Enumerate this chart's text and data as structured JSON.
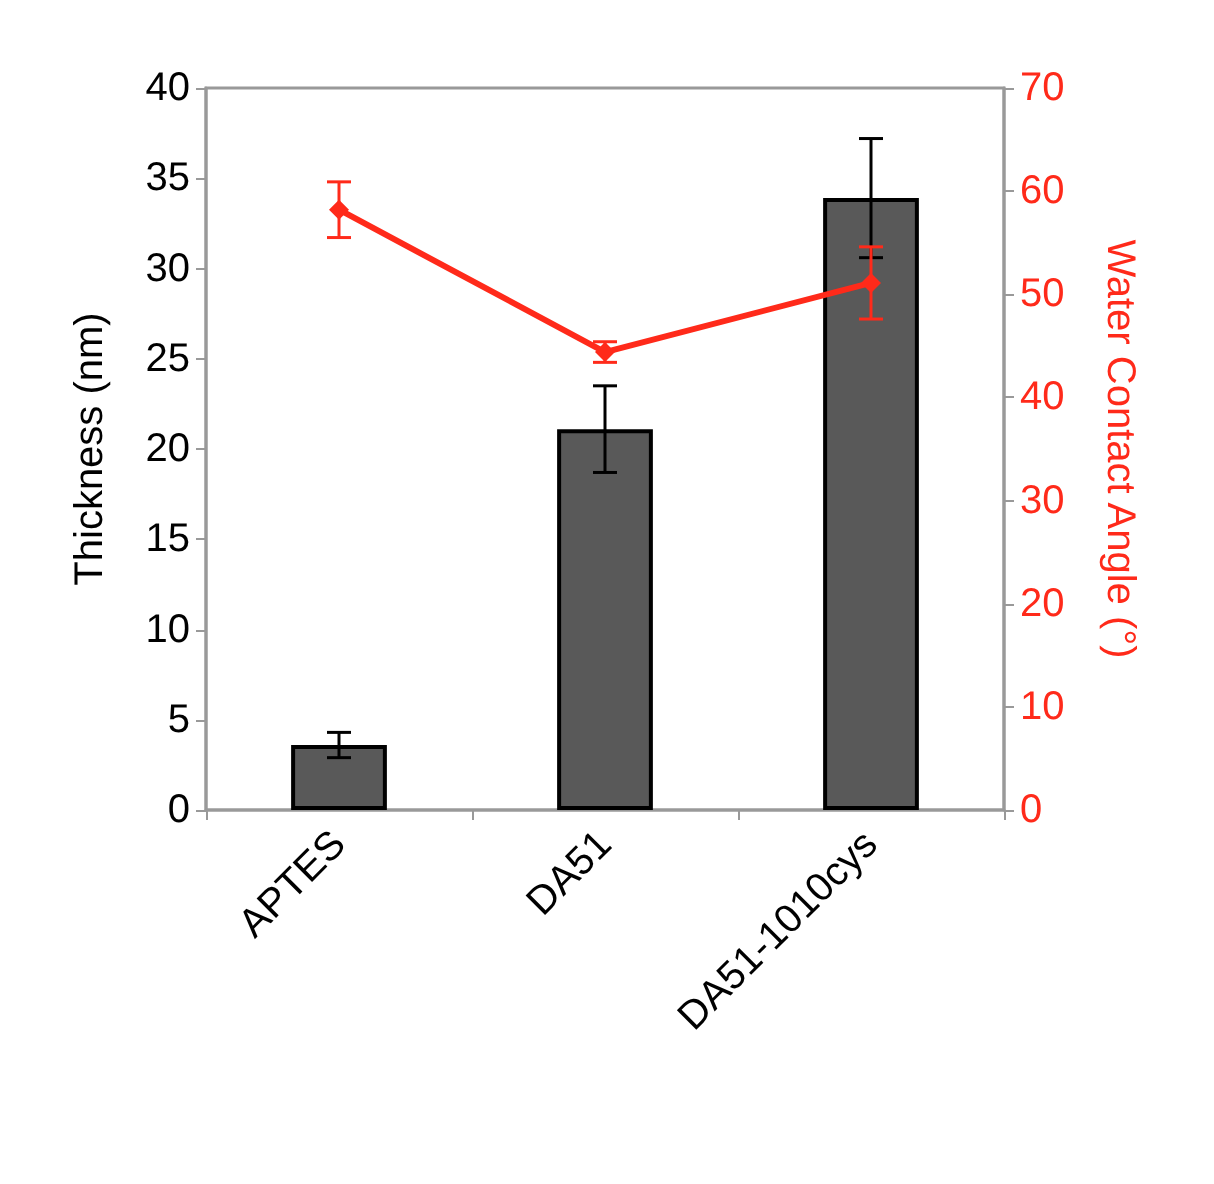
{
  "chart_data": {
    "type": "bar",
    "categories": [
      "APTES",
      "DA51",
      "DA51-1010cys"
    ],
    "ylabel": "Thickness (nm)",
    "y2label": "Water Contact Angle (°)",
    "ylim": [
      0,
      40
    ],
    "yticks": [
      0,
      5,
      10,
      15,
      20,
      25,
      30,
      35,
      40
    ],
    "y2lim": [
      0,
      70
    ],
    "y2ticks": [
      0,
      10,
      20,
      30,
      40,
      50,
      60,
      70
    ],
    "grid": false,
    "series": [
      {
        "color": "#595959",
        "values": [
          3.6,
          21.1,
          33.9
        ],
        "errors": [
          0.7,
          2.4,
          3.3
        ]
      },
      {
        "type": "line",
        "axis": "y2",
        "color": "#ff2a1a",
        "marker": "diamond",
        "line_style": "solid",
        "values": [
          58.2,
          44.4,
          51.1
        ],
        "errors": [
          2.7,
          1,
          3.5
        ]
      }
    ]
  }
}
